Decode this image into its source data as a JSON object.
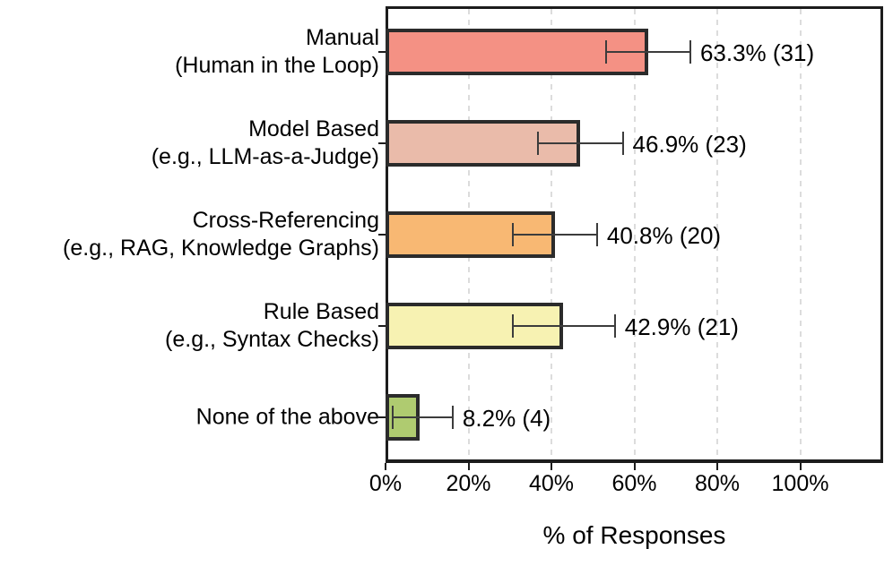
{
  "chart_data": {
    "type": "bar",
    "orientation": "horizontal",
    "title": "",
    "xlabel": "% of Responses",
    "ylabel": "",
    "xlim": [
      0,
      120
    ],
    "xticks": [
      0,
      20,
      40,
      60,
      80,
      100
    ],
    "xtick_labels": [
      "0%",
      "20%",
      "40%",
      "60%",
      "80%",
      "100%"
    ],
    "grid": "vertical-dashed",
    "legend": "none",
    "categories": [
      {
        "name": "manual",
        "lines": [
          "Manual",
          "(Human in the Loop)"
        ],
        "value": 63.3,
        "count": 31,
        "label": "63.3% (31)",
        "err_low": 53.2,
        "err_high": 73.5,
        "color": "#F49184"
      },
      {
        "name": "model-based",
        "lines": [
          "Model Based",
          "(e.g., LLM-as-a-Judge)"
        ],
        "value": 46.9,
        "count": 23,
        "label": "46.9% (23)",
        "err_low": 36.7,
        "err_high": 57.2,
        "color": "#EABBAA"
      },
      {
        "name": "cross-referencing",
        "lines": [
          "Cross-Referencing",
          "(e.g., RAG, Knowledge Graphs)"
        ],
        "value": 40.8,
        "count": 20,
        "label": "40.8% (20)",
        "err_low": 30.7,
        "err_high": 51.0,
        "color": "#F8B873"
      },
      {
        "name": "rule-based",
        "lines": [
          "Rule Based",
          "(e.g., Syntax Checks)"
        ],
        "value": 42.9,
        "count": 21,
        "label": "42.9% (21)",
        "err_low": 30.6,
        "err_high": 55.3,
        "color": "#F7F2B2"
      },
      {
        "name": "none-of-the-above",
        "lines": [
          "None of the above"
        ],
        "value": 8.2,
        "count": 4,
        "label": "8.2% (4)",
        "err_low": 1.8,
        "err_high": 16.2,
        "color": "#AFCB70"
      }
    ],
    "style_colors": {
      "bar_border": "#2b2b2b",
      "error_bar": "#3c3c3c",
      "axis": "#1c1c1c",
      "gridline": "#dcdcdc",
      "text": "#000000"
    }
  }
}
